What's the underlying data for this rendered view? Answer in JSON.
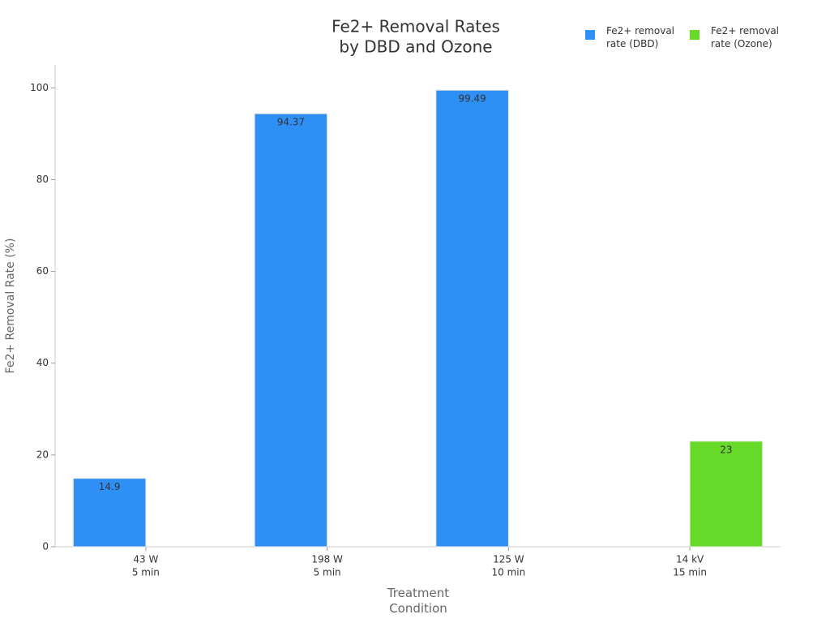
{
  "chart_data": {
    "type": "bar",
    "title": [
      "Fe2+ Removal Rates",
      "by DBD and Ozone"
    ],
    "x_label": "Treatment Condition",
    "y_label": "Fe2+ Removal Rate (%)",
    "categories": [
      [
        "43 W",
        "5 min"
      ],
      [
        "198 W",
        "5 min"
      ],
      [
        "125 W",
        "10 min"
      ],
      [
        "14 kV",
        "15 min"
      ]
    ],
    "series": [
      {
        "name": "Fe2+ removal rate (DBD)",
        "color": "#2e8ff5",
        "values": [
          14.9,
          94.37,
          99.49,
          null
        ]
      },
      {
        "name": "Fe2+ removal rate (Ozone)",
        "color": "#67d928",
        "values": [
          null,
          null,
          null,
          23
        ]
      }
    ],
    "ylim": [
      0,
      105
    ],
    "yticks": [
      0,
      20,
      40,
      60,
      80,
      100
    ],
    "grid": false,
    "legend": "top-right"
  }
}
